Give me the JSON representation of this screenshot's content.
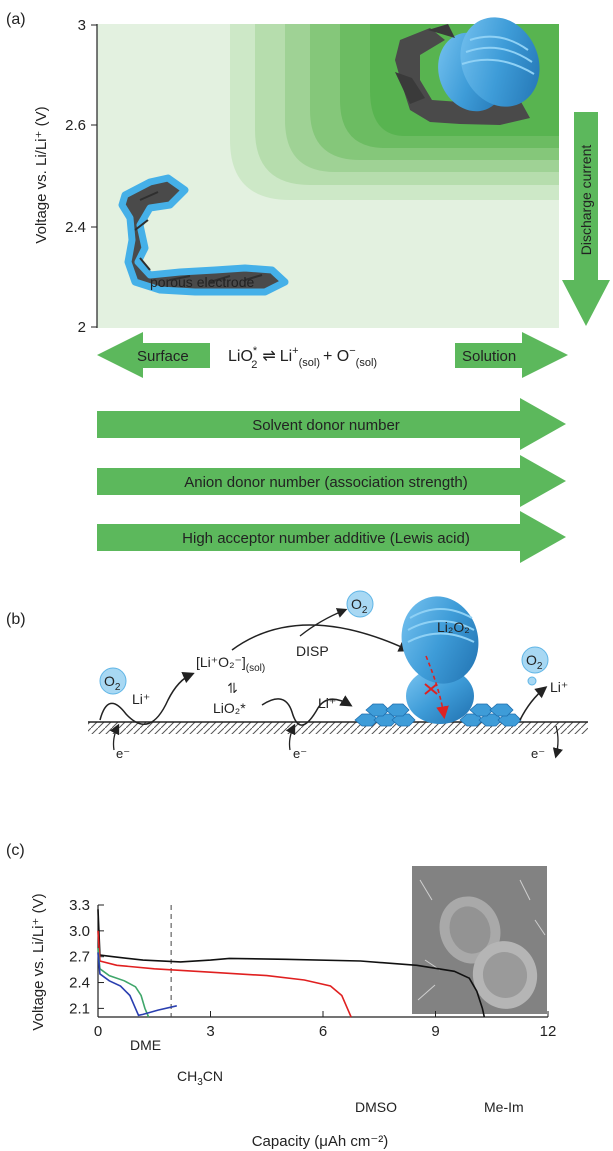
{
  "panel_a": {
    "label": "(a)",
    "y_axis_label": "Voltage vs. Li/Li⁺ (V)",
    "y_ticks": [
      "3",
      "2.6",
      "2.4",
      "2"
    ],
    "discharge_label": "Discharge current",
    "electrode_label": "porous electrode",
    "surface_label": "Surface",
    "solution_label": "Solution",
    "equation": {
      "lio2": "LiO",
      "sub2": "2",
      "star": "*",
      "eq": "⇌",
      "li": "Li",
      "plus": "+",
      "sol": "(sol)",
      "o2": "+ O",
      "minus": "−"
    },
    "arrows": [
      "Solvent donor number",
      "Anion donor number (association strength)",
      "High acceptor number additive (Lewis acid)"
    ],
    "colors": {
      "arrow": "#5cb85c",
      "field": "#e3f1e0",
      "deep": "#58b450",
      "particle": "#3e9cd8"
    }
  },
  "panel_b": {
    "label": "(b)",
    "o2": "O",
    "o2_sub": "2",
    "li_plus": "Li⁺",
    "electron": "e⁻",
    "complex": "[Li⁺O₂⁻]",
    "complex_sub": "(sol)",
    "lio2_star": "LiO₂*",
    "disp": "DISP",
    "li2o2": "Li₂O₂",
    "eq_arrows": "⇌"
  },
  "panel_c": {
    "label": "(c)",
    "chart_data": {
      "type": "line",
      "xlabel": "Capacity (μAh cm⁻²)",
      "ylabel": "Voltage vs. Li/Li⁺ (V)",
      "xlim": [
        0,
        12
      ],
      "ylim": [
        2.0,
        3.3
      ],
      "x_ticks": [
        "0",
        "3",
        "6",
        "9",
        "12"
      ],
      "y_ticks": [
        "2.1",
        "2.4",
        "2.7",
        "3.0",
        "3.3"
      ],
      "vline_x": 1.95,
      "series": [
        {
          "name": "Me-Im",
          "color": "#111111",
          "x": [
            0,
            0.05,
            0.4,
            1.2,
            2.2,
            3.0,
            3.5,
            5,
            7,
            8.5,
            9.5,
            9.9,
            10.1,
            10.25,
            10.3
          ],
          "y": [
            3.25,
            2.72,
            2.7,
            2.66,
            2.64,
            2.66,
            2.68,
            2.67,
            2.65,
            2.6,
            2.53,
            2.45,
            2.3,
            2.1,
            2.0
          ]
        },
        {
          "name": "DMSO",
          "color": "#e02020",
          "x": [
            0,
            0.05,
            0.5,
            1.5,
            3,
            4.5,
            5.5,
            6.2,
            6.5,
            6.65,
            6.75
          ],
          "y": [
            3.0,
            2.65,
            2.6,
            2.56,
            2.52,
            2.48,
            2.43,
            2.36,
            2.25,
            2.1,
            2.0
          ]
        },
        {
          "name": "DME",
          "color": "#3fa66a",
          "x": [
            0,
            0.05,
            0.3,
            0.7,
            1.0,
            1.15,
            1.25,
            1.35
          ],
          "y": [
            2.8,
            2.56,
            2.48,
            2.42,
            2.35,
            2.25,
            2.1,
            2.0
          ]
        },
        {
          "name": "CH₃CN",
          "color": "#2a3fb0",
          "x": [
            0,
            0.05,
            0.3,
            0.6,
            0.85,
            1.0,
            1.08,
            1.2,
            1.6,
            2.1
          ],
          "y": [
            2.75,
            2.5,
            2.42,
            2.36,
            2.25,
            2.1,
            2.02,
            2.03,
            2.08,
            2.13
          ]
        }
      ],
      "labels": {
        "dme": "DME",
        "ch3cn_pre": "CH",
        "ch3cn_sub": "3",
        "ch3cn_post": "CN",
        "dmso": "DMSO",
        "meim": "Me-Im"
      }
    }
  }
}
